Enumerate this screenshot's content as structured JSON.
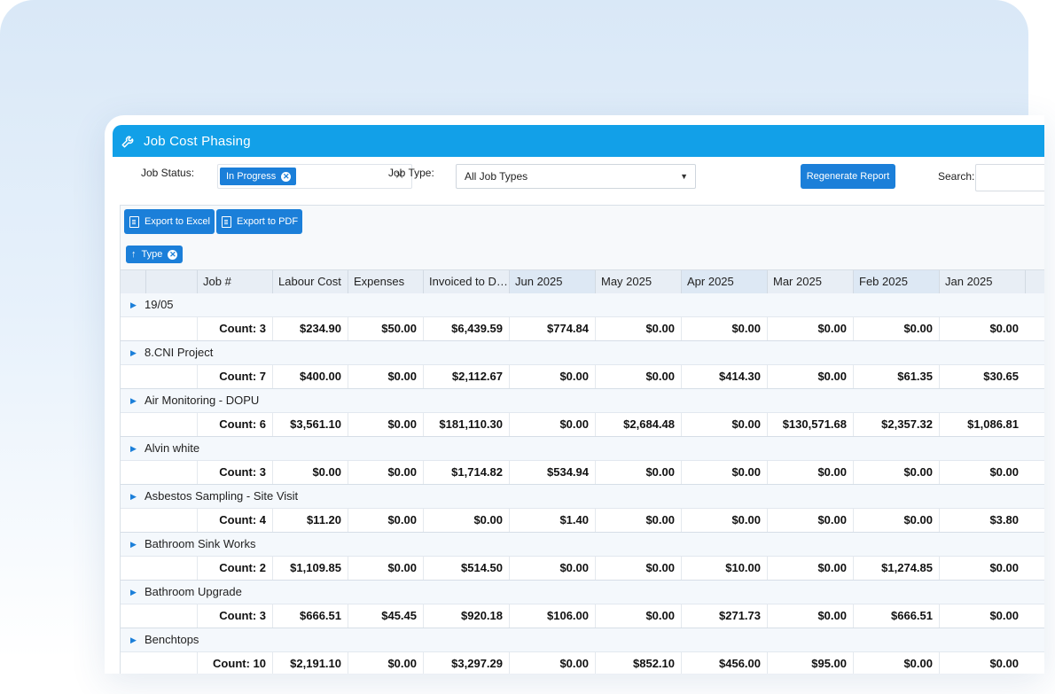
{
  "window": {
    "title": "Job Cost Phasing"
  },
  "filters": {
    "job_status_label": "Job Status:",
    "job_status_chip": "In Progress",
    "job_type_label": "Job Type:",
    "job_type_value": "All Job Types",
    "regenerate_label": "Regenerate Report",
    "search_label": "Search:",
    "search_value": ""
  },
  "toolbar": {
    "export_excel": "Export to Excel",
    "export_pdf": "Export to PDF"
  },
  "group_panel": {
    "chip": "Type"
  },
  "columns": [
    "Job #",
    "Labour Cost",
    "Expenses",
    "Invoiced to Da...",
    "Jun 2025",
    "May 2025",
    "Apr 2025",
    "Mar 2025",
    "Feb 2025",
    "Jan 2025"
  ],
  "groups": [
    {
      "name": "19/05",
      "count": "Count: 3",
      "values": [
        "$234.90",
        "$50.00",
        "$6,439.59",
        "$774.84",
        "$0.00",
        "$0.00",
        "$0.00",
        "$0.00",
        "$0.00"
      ]
    },
    {
      "name": "8.CNI Project",
      "count": "Count: 7",
      "values": [
        "$400.00",
        "$0.00",
        "$2,112.67",
        "$0.00",
        "$0.00",
        "$414.30",
        "$0.00",
        "$61.35",
        "$30.65"
      ]
    },
    {
      "name": "Air Monitoring - DOPU",
      "count": "Count: 6",
      "values": [
        "$3,561.10",
        "$0.00",
        "$181,110.30",
        "$0.00",
        "$2,684.48",
        "$0.00",
        "$130,571.68",
        "$2,357.32",
        "$1,086.81"
      ]
    },
    {
      "name": "Alvin white",
      "count": "Count: 3",
      "values": [
        "$0.00",
        "$0.00",
        "$1,714.82",
        "$534.94",
        "$0.00",
        "$0.00",
        "$0.00",
        "$0.00",
        "$0.00"
      ]
    },
    {
      "name": "Asbestos Sampling - Site Visit",
      "count": "Count: 4",
      "values": [
        "$11.20",
        "$0.00",
        "$0.00",
        "$1.40",
        "$0.00",
        "$0.00",
        "$0.00",
        "$0.00",
        "$3.80"
      ]
    },
    {
      "name": "Bathroom Sink Works",
      "count": "Count: 2",
      "values": [
        "$1,109.85",
        "$0.00",
        "$514.50",
        "$0.00",
        "$0.00",
        "$10.00",
        "$0.00",
        "$1,274.85",
        "$0.00"
      ]
    },
    {
      "name": "Bathroom Upgrade",
      "count": "Count: 3",
      "values": [
        "$666.51",
        "$45.45",
        "$920.18",
        "$106.00",
        "$0.00",
        "$271.73",
        "$0.00",
        "$666.51",
        "$0.00"
      ]
    },
    {
      "name": "Benchtops",
      "count": "Count: 10",
      "values": [
        "$2,191.10",
        "$0.00",
        "$3,297.29",
        "$0.00",
        "$852.10",
        "$456.00",
        "$95.00",
        "$0.00",
        "$0.00"
      ]
    }
  ],
  "colors": {
    "accent": "#1b7fd9",
    "titlebar": "#12a0e8"
  }
}
